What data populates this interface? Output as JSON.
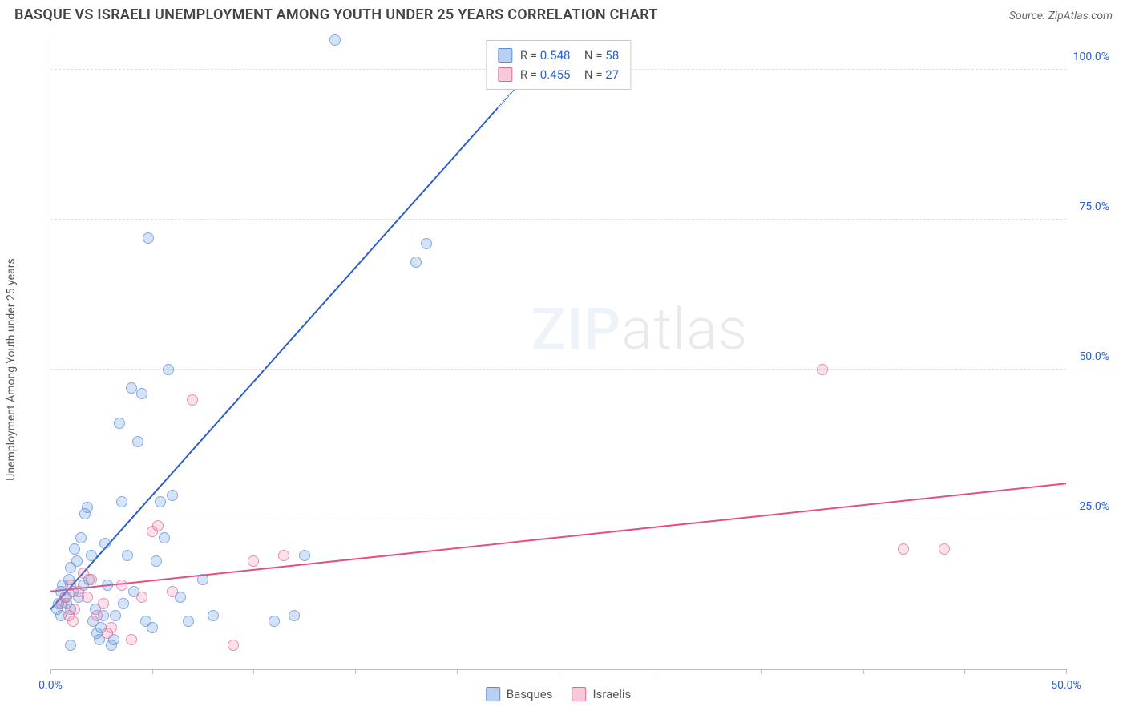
{
  "header": {
    "title": "BASQUE VS ISRAELI UNEMPLOYMENT AMONG YOUTH UNDER 25 YEARS CORRELATION CHART",
    "source_label": "Source: ZipAtlas.com"
  },
  "ylabel": "Unemployment Among Youth under 25 years",
  "watermark": {
    "zip": "ZIP",
    "atlas": "atlas"
  },
  "chart": {
    "type": "scatter",
    "xlim": [
      0,
      50
    ],
    "ylim": [
      0,
      105
    ],
    "x_ticks": [
      0,
      5,
      10,
      15,
      20,
      25,
      30,
      35,
      40,
      45,
      50
    ],
    "x_tick_labels": {
      "0": "0.0%",
      "50": "50.0%"
    },
    "y_gridlines": [
      25,
      50,
      75,
      100
    ],
    "y_tick_labels": {
      "25": "25.0%",
      "50": "50.0%",
      "75": "75.0%",
      "100": "100.0%"
    },
    "background_color": "#ffffff",
    "grid_color": "#dddddd",
    "axis_color": "#bbbbbb",
    "tick_label_color": "#2962d9",
    "marker_size": 14,
    "series": [
      {
        "name": "Basques",
        "color_fill": "rgba(96,150,228,0.35)",
        "color_stroke": "#5b8fd6",
        "r": 0.548,
        "n": 58,
        "trend": {
          "x1": 0,
          "y1": 10,
          "x2": 25,
          "y2": 105,
          "dash_after_x": 22,
          "color": "#2a5fc9",
          "width": 2
        },
        "points": [
          [
            0.3,
            10
          ],
          [
            0.4,
            11
          ],
          [
            0.5,
            13
          ],
          [
            0.5,
            9
          ],
          [
            0.6,
            14
          ],
          [
            0.7,
            12
          ],
          [
            0.8,
            11
          ],
          [
            0.9,
            15
          ],
          [
            1.0,
            10
          ],
          [
            1.0,
            17
          ],
          [
            1.1,
            13
          ],
          [
            1.2,
            20
          ],
          [
            1.3,
            18
          ],
          [
            1.4,
            12
          ],
          [
            1.5,
            22
          ],
          [
            1.6,
            14
          ],
          [
            1.7,
            26
          ],
          [
            1.8,
            27
          ],
          [
            1.9,
            15
          ],
          [
            2.0,
            19
          ],
          [
            2.1,
            8
          ],
          [
            2.2,
            10
          ],
          [
            2.3,
            6
          ],
          [
            2.4,
            5
          ],
          [
            2.5,
            7
          ],
          [
            2.7,
            21
          ],
          [
            2.8,
            14
          ],
          [
            3.0,
            4
          ],
          [
            3.2,
            9
          ],
          [
            3.4,
            41
          ],
          [
            3.5,
            28
          ],
          [
            3.6,
            11
          ],
          [
            3.8,
            19
          ],
          [
            4.0,
            47
          ],
          [
            4.1,
            13
          ],
          [
            4.3,
            38
          ],
          [
            4.5,
            46
          ],
          [
            4.7,
            8
          ],
          [
            5.0,
            7
          ],
          [
            5.2,
            18
          ],
          [
            5.4,
            28
          ],
          [
            5.6,
            22
          ],
          [
            5.8,
            50
          ],
          [
            6.0,
            29
          ],
          [
            6.4,
            12
          ],
          [
            6.8,
            8
          ],
          [
            7.5,
            15
          ],
          [
            8.0,
            9
          ],
          [
            11.0,
            8
          ],
          [
            12.0,
            9
          ],
          [
            12.5,
            19
          ],
          [
            14.0,
            105
          ],
          [
            18.0,
            68
          ],
          [
            18.5,
            71
          ],
          [
            4.8,
            72
          ],
          [
            2.6,
            9
          ],
          [
            3.1,
            5
          ],
          [
            1.0,
            4
          ]
        ]
      },
      {
        "name": "Israelis",
        "color_fill": "rgba(238,120,160,0.30)",
        "color_stroke": "#e06a9a",
        "r": 0.455,
        "n": 27,
        "trend": {
          "x1": 0,
          "y1": 13,
          "x2": 50,
          "y2": 31,
          "color": "#e94b86",
          "width": 2
        },
        "points": [
          [
            0.5,
            11
          ],
          [
            0.8,
            12
          ],
          [
            1.0,
            14
          ],
          [
            1.2,
            10
          ],
          [
            1.4,
            13
          ],
          [
            1.6,
            16
          ],
          [
            1.8,
            12
          ],
          [
            2.0,
            15
          ],
          [
            2.3,
            9
          ],
          [
            2.6,
            11
          ],
          [
            3.0,
            7
          ],
          [
            3.5,
            14
          ],
          [
            4.0,
            5
          ],
          [
            4.5,
            12
          ],
          [
            5.0,
            23
          ],
          [
            5.3,
            24
          ],
          [
            6.0,
            13
          ],
          [
            7.0,
            45
          ],
          [
            9.0,
            4
          ],
          [
            10.0,
            18
          ],
          [
            11.5,
            19
          ],
          [
            38.0,
            50
          ],
          [
            42.0,
            20
          ],
          [
            44.0,
            20
          ],
          [
            2.8,
            6
          ],
          [
            1.1,
            8
          ],
          [
            0.9,
            9
          ]
        ]
      }
    ]
  },
  "legend_top": {
    "rows": [
      {
        "swatch": "blue",
        "r_label": "R =",
        "r_val": "0.548",
        "n_label": "N =",
        "n_val": "58"
      },
      {
        "swatch": "pink",
        "r_label": "R =",
        "r_val": "0.455",
        "n_label": "N =",
        "n_val": "27"
      }
    ]
  },
  "legend_bottom": {
    "items": [
      {
        "swatch": "blue",
        "label": "Basques"
      },
      {
        "swatch": "pink",
        "label": "Israelis"
      }
    ]
  }
}
